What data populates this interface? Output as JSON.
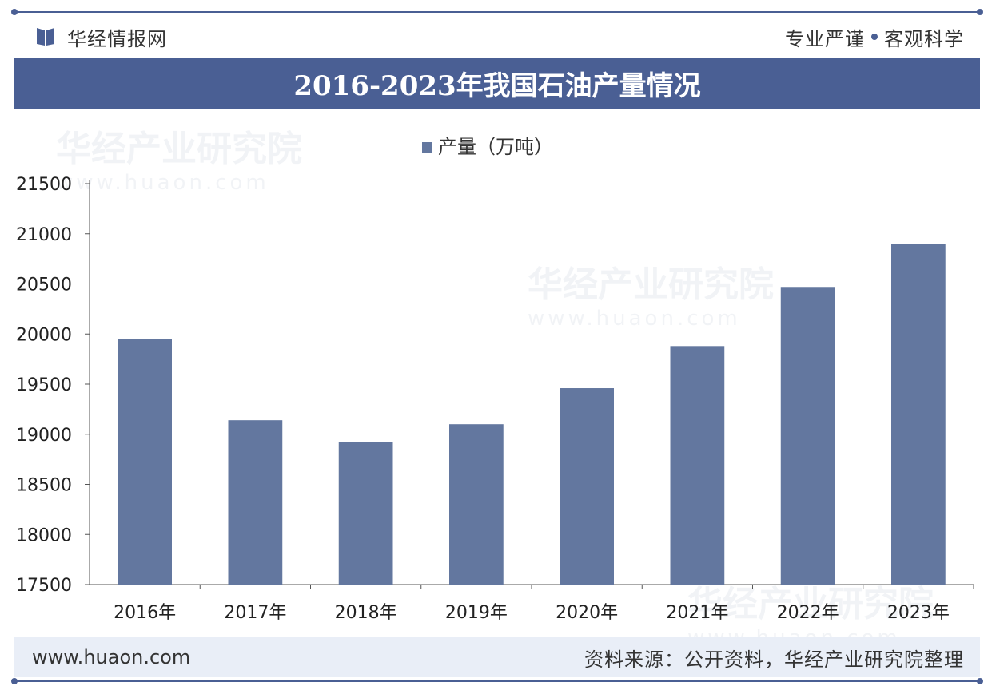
{
  "header": {
    "brand_name": "华经情报网",
    "slogan_left": "专业严谨",
    "slogan_right": "客观科学"
  },
  "title": "2016-2023年我国石油产量情况",
  "watermark": {
    "text": "华经产业研究院",
    "url": "www.huaon.com"
  },
  "footer": {
    "website": "www.huaon.com",
    "source": "资料来源：公开资料，华经产业研究院整理"
  },
  "colors": {
    "accent": "#4a5f94",
    "bar": "#63779f"
  },
  "chart_data": {
    "type": "bar",
    "categories": [
      "2016年",
      "2017年",
      "2018年",
      "2019年",
      "2020年",
      "2021年",
      "2022年",
      "2023年"
    ],
    "series": [
      {
        "name": "产量（万吨）",
        "values": [
          19950,
          19140,
          18920,
          19100,
          19460,
          19880,
          20470,
          20900
        ]
      }
    ],
    "ylim": [
      17500,
      21500
    ],
    "yticks": [
      17500,
      18000,
      18500,
      19000,
      19500,
      20000,
      20500,
      21000,
      21500
    ],
    "legend_position": "top-center",
    "grid": false
  }
}
